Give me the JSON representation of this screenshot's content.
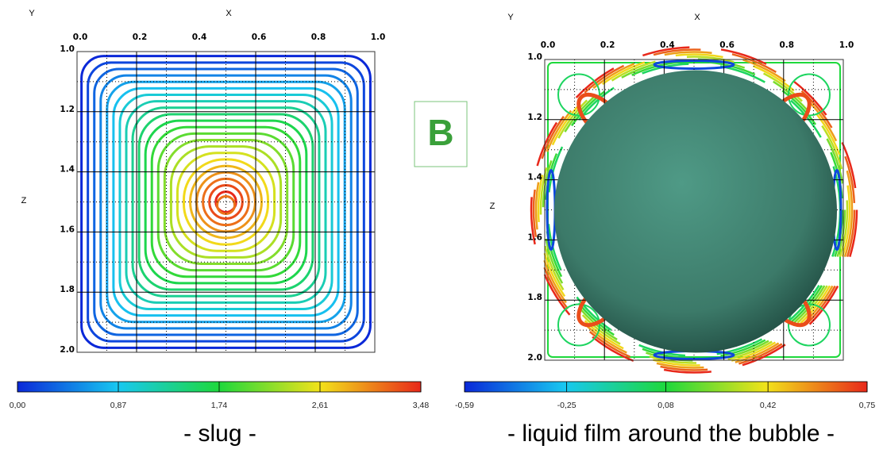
{
  "annotation": "B",
  "chart_data": [
    {
      "type": "contour",
      "x_label": "X",
      "y_label": "Y",
      "z_label": "Z",
      "xlim": [
        0,
        1
      ],
      "ylim": [
        1,
        2
      ],
      "y_inverted": true,
      "xticks": [
        {
          "value": 0,
          "label": "0.0"
        },
        0.2,
        0.4,
        0.6,
        0.8,
        {
          "value": 1,
          "label": "1.0"
        }
      ],
      "yticks": [
        {
          "value": 1,
          "label": "1.0"
        },
        1.2,
        1.4,
        1.6,
        1.8,
        {
          "value": 2,
          "label": "2.0"
        }
      ],
      "grid": true,
      "colormap": [
        "#0a28d8",
        "#18c8f0",
        "#1ed83c",
        "#f2e21a",
        "#e8281a"
      ],
      "clim": [
        0,
        3.48
      ],
      "colorbar_ticks": [
        {
          "value": 0,
          "label": "0,00"
        },
        {
          "value": 0.87,
          "label": "0,87"
        },
        {
          "value": 1.74,
          "label": "1,74"
        },
        {
          "value": 2.61,
          "label": "2,61"
        },
        {
          "value": 3.48,
          "label": "3,48"
        }
      ],
      "caption": "- slug -"
    },
    {
      "type": "contour",
      "x_label": "X",
      "y_label": "Y",
      "z_label": "Z",
      "xlim": [
        0,
        1
      ],
      "ylim": [
        1,
        2
      ],
      "y_inverted": true,
      "xticks": [
        {
          "value": 0,
          "label": "0.0"
        },
        0.2,
        0.4,
        0.6,
        0.8,
        {
          "value": 1,
          "label": "1.0"
        }
      ],
      "yticks": [
        {
          "value": 1,
          "label": "1.0"
        },
        1.2,
        1.4,
        1.6,
        1.8,
        {
          "value": 2,
          "label": "2.0"
        }
      ],
      "grid": true,
      "colormap": [
        "#0a28d8",
        "#18c8f0",
        "#1ed83c",
        "#f2e21a",
        "#e8281a"
      ],
      "clim": [
        -0.59,
        0.75
      ],
      "colorbar_ticks": [
        {
          "value": -0.59,
          "label": "-0,59"
        },
        {
          "value": -0.25,
          "label": "-0,25"
        },
        {
          "value": 0.08,
          "label": "0,08"
        },
        {
          "value": 0.42,
          "label": "0,42"
        },
        {
          "value": 0.75,
          "label": "0,75"
        }
      ],
      "caption": "- liquid film around the bubble -"
    }
  ]
}
